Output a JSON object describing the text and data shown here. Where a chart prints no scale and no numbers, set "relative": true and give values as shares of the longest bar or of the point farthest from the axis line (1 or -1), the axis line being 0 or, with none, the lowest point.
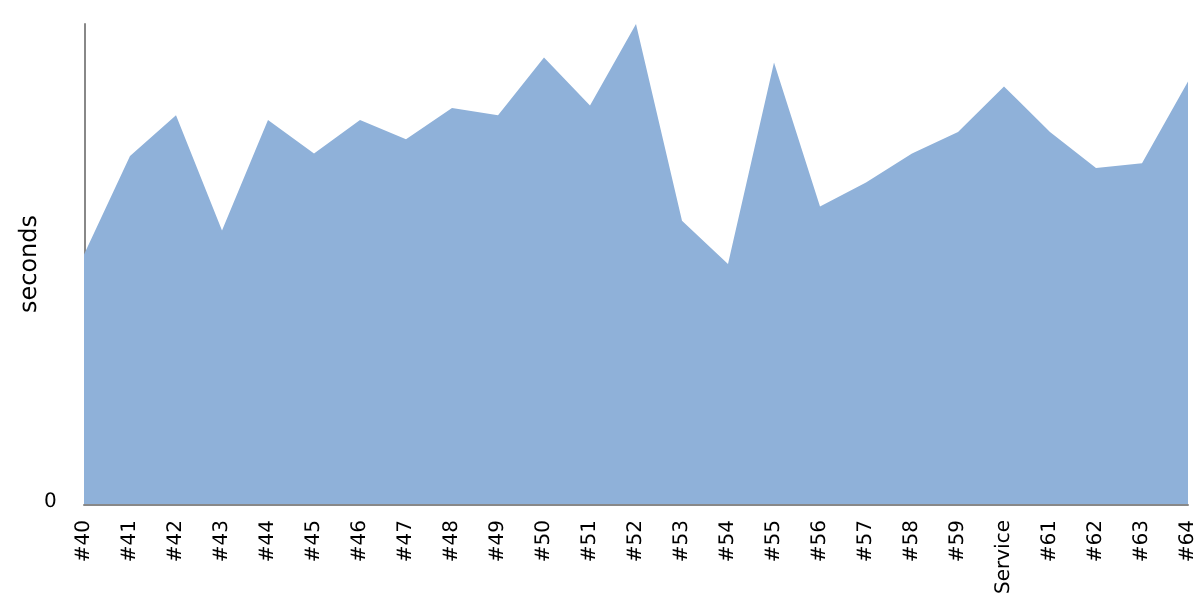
{
  "chart_data": {
    "type": "area",
    "relative": true,
    "ylabel": "seconds",
    "annotations": [
      "0"
    ],
    "categories": [
      "#40",
      "#41",
      "#42",
      "#43",
      "#44",
      "#45",
      "#46",
      "#47",
      "#48",
      "#49",
      "#50",
      "#51",
      "#52",
      "#53",
      "#54",
      "#55",
      "#56",
      "#57",
      "#58",
      "#59",
      "Service",
      "#61",
      "#62",
      "#63",
      "#64"
    ],
    "series": [
      {
        "color": "#8fb1d9",
        "values": [
          0.52,
          0.725,
          0.81,
          0.57,
          0.8,
          0.73,
          0.8,
          0.76,
          0.825,
          0.81,
          0.93,
          0.83,
          1,
          0.59,
          0.5,
          0.92,
          0.62,
          0.67,
          0.73,
          0.775,
          0.87,
          0.775,
          0.7,
          0.71,
          0.88
        ]
      }
    ],
    "marker": "none"
  }
}
